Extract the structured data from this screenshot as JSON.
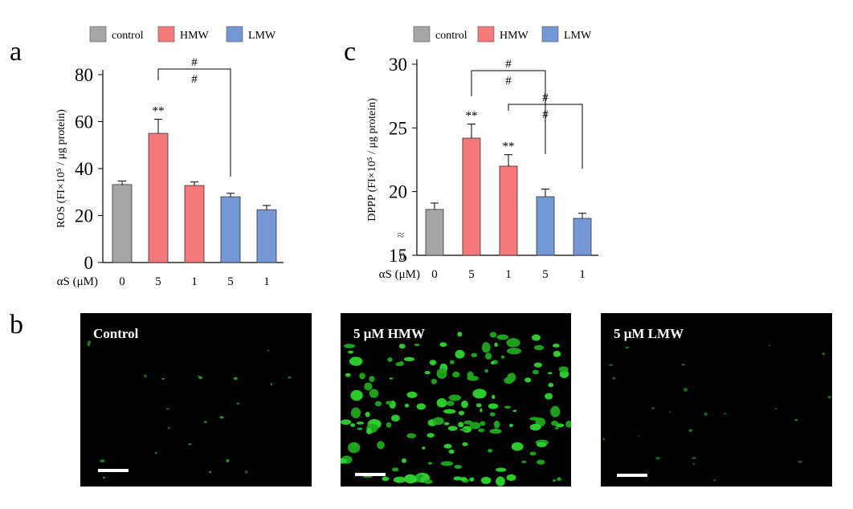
{
  "panels": {
    "a": "a",
    "b": "b",
    "c": "c"
  },
  "chart_data": [
    {
      "type": "bar",
      "panel": "a",
      "ylabel": "ROS  (FI×10⁵ / μg protein)",
      "xlabel": "αS (μM)",
      "ylim": [
        0,
        80
      ],
      "yticks": [
        "0",
        "20",
        "40",
        "60",
        "80"
      ],
      "categories": [
        "0",
        "5",
        "1",
        "5",
        "1"
      ],
      "groups": [
        "control",
        "HMW",
        "HMW",
        "LMW",
        "LMW"
      ],
      "values": [
        33.2,
        55,
        32.8,
        28,
        22.5
      ],
      "errors": [
        1.5,
        6,
        1.5,
        1.5,
        1.8
      ],
      "significance": [
        "",
        "**",
        "",
        "",
        ""
      ],
      "brackets": [
        {
          "from": 1,
          "to": 3,
          "label": "#",
          "label2": "#"
        }
      ],
      "legend": [
        {
          "name": "control",
          "color": "#a6a6a6"
        },
        {
          "name": "HMW",
          "color": "#f4797a"
        },
        {
          "name": "LMW",
          "color": "#7398d5"
        }
      ]
    },
    {
      "type": "bar",
      "panel": "c",
      "ylabel": "DPPP  (FI×10⁵ / μg protein)",
      "xlabel": "αS (μM)",
      "ylim": [
        15,
        30
      ],
      "yticks": [
        "15",
        "20",
        "25",
        "30"
      ],
      "axis_break": "≈",
      "axis_zero": "0",
      "categories": [
        "0",
        "5",
        "1",
        "5",
        "1"
      ],
      "groups": [
        "control",
        "HMW",
        "HMW",
        "LMW",
        "LMW"
      ],
      "values": [
        18.6,
        24.2,
        22.0,
        19.6,
        17.9
      ],
      "errors": [
        0.5,
        1.1,
        0.9,
        0.6,
        0.4
      ],
      "significance": [
        "",
        "**",
        "**",
        "",
        ""
      ],
      "brackets": [
        {
          "from": 1,
          "to": 3,
          "label": "#",
          "label2": "#"
        },
        {
          "from": 2,
          "to": 4,
          "label": "#",
          "label2": "#"
        }
      ],
      "legend": [
        {
          "name": "control",
          "color": "#a6a6a6"
        },
        {
          "name": "HMW",
          "color": "#f4797a"
        },
        {
          "name": "LMW",
          "color": "#7398d5"
        }
      ]
    }
  ],
  "micrographs": [
    {
      "label": "Control"
    },
    {
      "label": "5 μM HMW"
    },
    {
      "label": "5 μM LMW"
    }
  ]
}
